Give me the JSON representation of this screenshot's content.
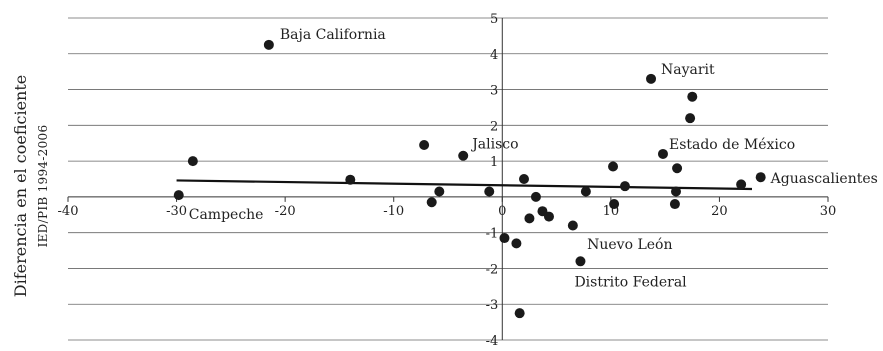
{
  "chart_data": {
    "type": "scatter",
    "title": "",
    "ylabel_line1": "Diferencia en el coeficiente",
    "ylabel_line2": "IED/PIB 1994-2006",
    "xlim": [
      -40,
      30
    ],
    "ylim": [
      -4,
      5
    ],
    "xticks": [
      -40,
      -30,
      -20,
      -10,
      0,
      10,
      20,
      30
    ],
    "yticks": [
      -4,
      -3,
      -2,
      -1,
      0,
      1,
      2,
      3,
      4,
      5
    ],
    "xtick_labels": [
      "-40",
      "-30",
      "-20",
      "-10",
      "0",
      "10",
      "20",
      "30"
    ],
    "ytick_labels": [
      "-4",
      "-3",
      "-2",
      "-1",
      "0",
      "1",
      "2",
      "3",
      "4",
      "5"
    ],
    "grid": "horizontal",
    "points": [
      {
        "x": -21.5,
        "y": 4.25,
        "label": "Baja California"
      },
      {
        "x": -29.8,
        "y": 0.05,
        "label": "Campeche"
      },
      {
        "x": -28.5,
        "y": 1.0,
        "label": ""
      },
      {
        "x": -14.0,
        "y": 0.48,
        "label": ""
      },
      {
        "x": -7.2,
        "y": 1.45,
        "label": ""
      },
      {
        "x": -6.5,
        "y": -0.15,
        "label": ""
      },
      {
        "x": -5.8,
        "y": 0.15,
        "label": ""
      },
      {
        "x": -3.6,
        "y": 1.15,
        "label": "Jalisco"
      },
      {
        "x": -1.2,
        "y": 0.15,
        "label": ""
      },
      {
        "x": 0.2,
        "y": -1.15,
        "label": ""
      },
      {
        "x": 1.3,
        "y": -1.3,
        "label": ""
      },
      {
        "x": 1.6,
        "y": -3.25,
        "label": ""
      },
      {
        "x": 2.0,
        "y": 0.5,
        "label": ""
      },
      {
        "x": 2.5,
        "y": -0.6,
        "label": ""
      },
      {
        "x": 3.1,
        "y": 0.0,
        "label": ""
      },
      {
        "x": 3.7,
        "y": -0.4,
        "label": ""
      },
      {
        "x": 4.3,
        "y": -0.55,
        "label": ""
      },
      {
        "x": 6.5,
        "y": -0.8,
        "label": ""
      },
      {
        "x": 7.2,
        "y": -1.8,
        "label": "Distrito Federal"
      },
      {
        "x": 7.7,
        "y": 0.15,
        "label": ""
      },
      {
        "x": 10.2,
        "y": 0.85,
        "label": ""
      },
      {
        "x": 10.3,
        "y": -0.2,
        "label": "Nuevo León"
      },
      {
        "x": 11.3,
        "y": 0.3,
        "label": ""
      },
      {
        "x": 13.7,
        "y": 3.3,
        "label": "Nayarit"
      },
      {
        "x": 14.8,
        "y": 1.2,
        "label": "Estado de México"
      },
      {
        "x": 15.9,
        "y": -0.2,
        "label": ""
      },
      {
        "x": 16.0,
        "y": 0.15,
        "label": ""
      },
      {
        "x": 16.1,
        "y": 0.8,
        "label": ""
      },
      {
        "x": 17.3,
        "y": 2.2,
        "label": ""
      },
      {
        "x": 17.5,
        "y": 2.8,
        "label": ""
      },
      {
        "x": 22.0,
        "y": 0.35,
        "label": ""
      },
      {
        "x": 23.8,
        "y": 0.55,
        "label": "Aguascalientes"
      }
    ],
    "trendline": {
      "x": [
        -30,
        23
      ],
      "y": [
        0.46,
        0.22
      ]
    }
  }
}
